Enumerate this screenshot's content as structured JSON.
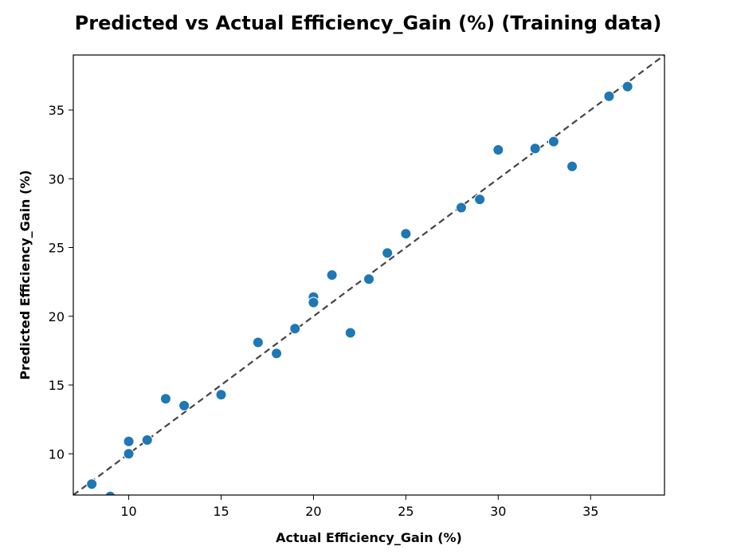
{
  "chart_data": {
    "type": "scatter",
    "title": "Predicted vs Actual Efficiency_Gain (%) (Training data)",
    "xlabel": "Actual Efficiency_Gain (%)",
    "ylabel": "Predicted Efficiency_Gain (%)",
    "xlim": [
      7,
      39
    ],
    "ylim": [
      7,
      39
    ],
    "xticks": [
      10,
      15,
      20,
      25,
      30,
      35
    ],
    "yticks": [
      10,
      15,
      20,
      25,
      30,
      35
    ],
    "grid": false,
    "marker_color": "#1f77b4",
    "reference_line": {
      "style": "dashed",
      "color": "#444444",
      "from": [
        7,
        7
      ],
      "to": [
        39,
        39
      ]
    },
    "points": [
      {
        "x": 8,
        "y": 7.8
      },
      {
        "x": 9,
        "y": 6.9
      },
      {
        "x": 10,
        "y": 10.9
      },
      {
        "x": 10,
        "y": 10.0
      },
      {
        "x": 11,
        "y": 11.0
      },
      {
        "x": 12,
        "y": 14.0
      },
      {
        "x": 13,
        "y": 13.5
      },
      {
        "x": 15,
        "y": 14.3
      },
      {
        "x": 17,
        "y": 18.1
      },
      {
        "x": 18,
        "y": 17.3
      },
      {
        "x": 19,
        "y": 19.1
      },
      {
        "x": 20,
        "y": 21.4
      },
      {
        "x": 20,
        "y": 21.0
      },
      {
        "x": 21,
        "y": 23.0
      },
      {
        "x": 22,
        "y": 18.8
      },
      {
        "x": 23,
        "y": 22.7
      },
      {
        "x": 24,
        "y": 24.6
      },
      {
        "x": 25,
        "y": 26.0
      },
      {
        "x": 28,
        "y": 27.9
      },
      {
        "x": 29,
        "y": 28.5
      },
      {
        "x": 30,
        "y": 32.1
      },
      {
        "x": 32,
        "y": 32.2
      },
      {
        "x": 33,
        "y": 32.7
      },
      {
        "x": 34,
        "y": 30.9
      },
      {
        "x": 36,
        "y": 36.0
      },
      {
        "x": 37,
        "y": 36.7
      }
    ]
  }
}
